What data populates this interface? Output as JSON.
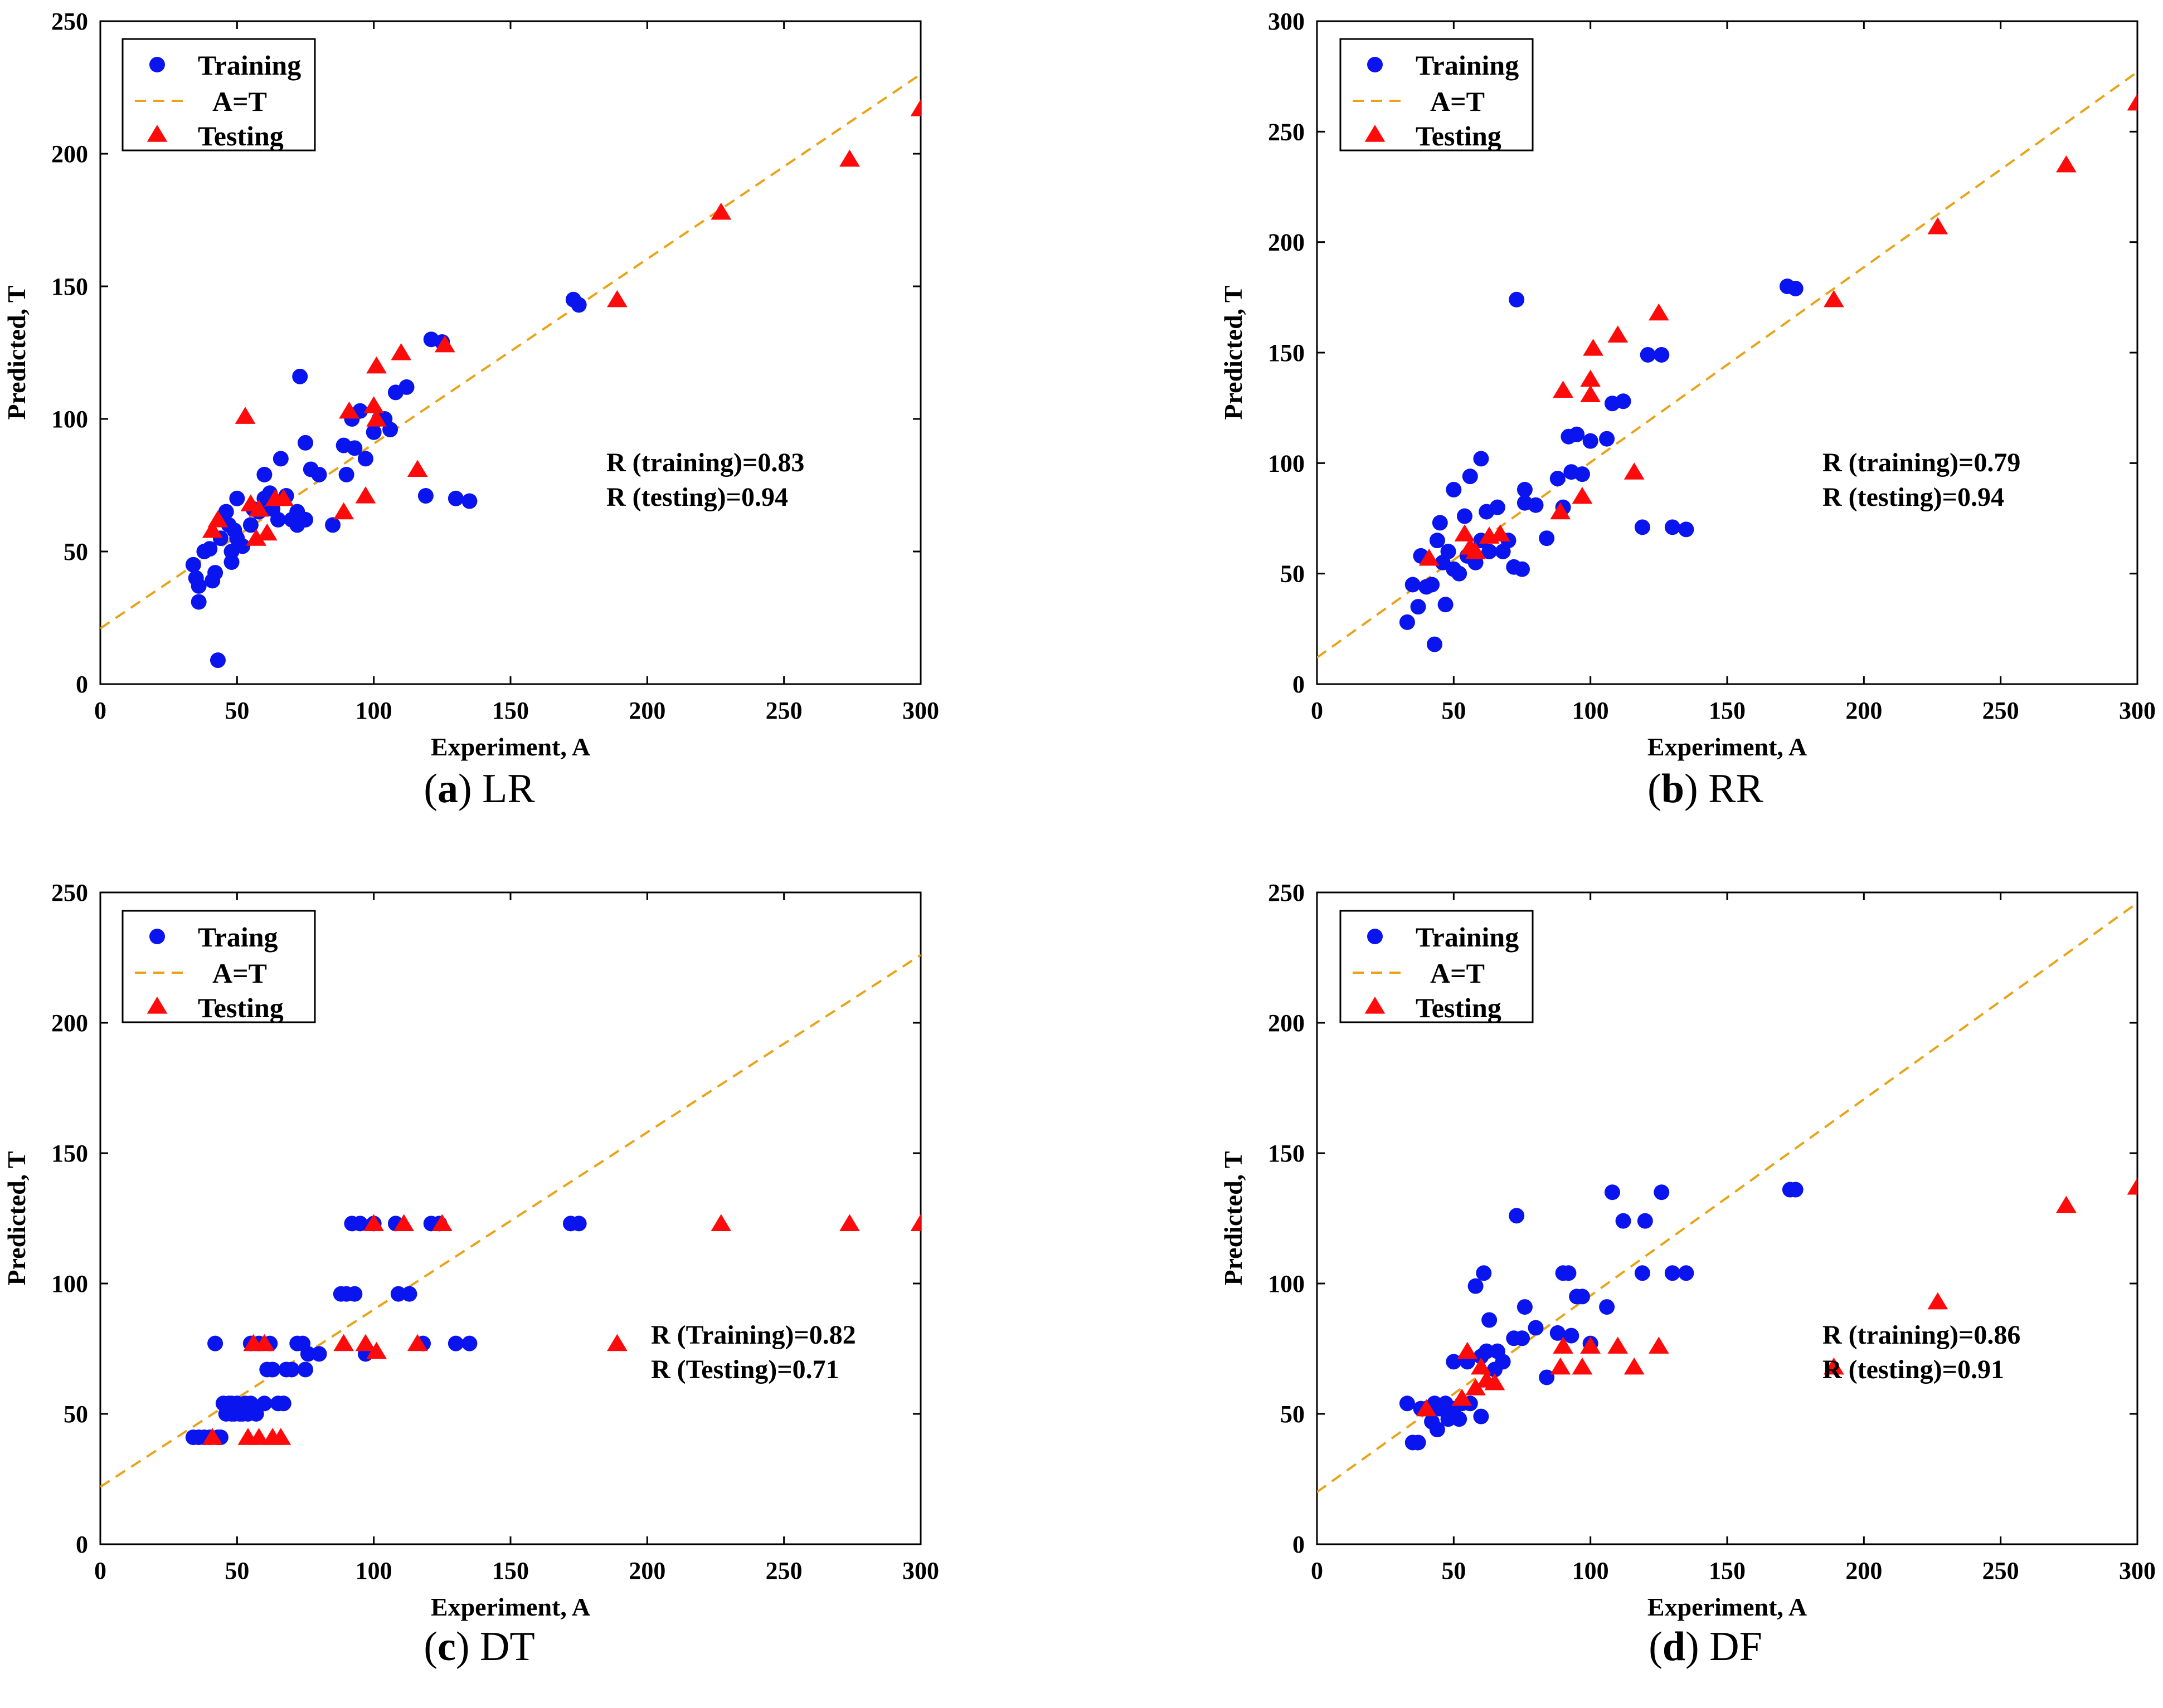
{
  "colors": {
    "training": "#0a14ee",
    "testing": "#ff0a0a",
    "fit": "#e8a317",
    "axis": "#000000"
  },
  "chart_data": [
    {
      "id": "a",
      "type": "scatter",
      "caption": {
        "letter": "(a)",
        "name": "LR"
      },
      "xlabel": "Experiment, A",
      "ylabel": "Predicted, T",
      "xlim": [
        0,
        300
      ],
      "ylim": [
        0,
        250
      ],
      "xticks": [
        "0",
        "50",
        "100",
        "150",
        "200",
        "250",
        "300"
      ],
      "yticks": [
        "0",
        "50",
        "100",
        "150",
        "200",
        "250"
      ],
      "legend": [
        "Training",
        "A=T",
        "Testing"
      ],
      "annotations": [
        "R (training)=0.83",
        "R (testing)=0.94"
      ],
      "fit_line": [
        [
          0,
          21
        ],
        [
          300,
          230
        ]
      ],
      "training": [
        [
          34,
          45
        ],
        [
          35,
          40
        ],
        [
          36,
          37
        ],
        [
          36,
          31
        ],
        [
          38,
          50
        ],
        [
          40,
          51
        ],
        [
          41,
          39
        ],
        [
          42,
          42
        ],
        [
          43,
          9
        ],
        [
          44,
          55
        ],
        [
          45,
          62
        ],
        [
          46,
          65
        ],
        [
          47,
          60
        ],
        [
          48,
          50
        ],
        [
          48,
          46
        ],
        [
          49,
          58
        ],
        [
          50,
          70
        ],
        [
          50,
          55
        ],
        [
          52,
          52
        ],
        [
          55,
          60
        ],
        [
          56,
          66
        ],
        [
          58,
          65
        ],
        [
          60,
          70
        ],
        [
          60,
          79
        ],
        [
          62,
          72
        ],
        [
          63,
          66
        ],
        [
          65,
          62
        ],
        [
          66,
          85
        ],
        [
          68,
          71
        ],
        [
          70,
          62
        ],
        [
          72,
          65
        ],
        [
          72,
          60
        ],
        [
          73,
          116
        ],
        [
          75,
          62
        ],
        [
          75,
          91
        ],
        [
          77,
          81
        ],
        [
          80,
          79
        ],
        [
          85,
          60
        ],
        [
          89,
          90
        ],
        [
          90,
          79
        ],
        [
          92,
          100
        ],
        [
          93,
          89
        ],
        [
          95,
          103
        ],
        [
          97,
          85
        ],
        [
          100,
          95
        ],
        [
          102,
          100
        ],
        [
          104,
          100
        ],
        [
          106,
          96
        ],
        [
          108,
          110
        ],
        [
          112,
          112
        ],
        [
          119,
          71
        ],
        [
          121,
          130
        ],
        [
          125,
          129
        ],
        [
          130,
          70
        ],
        [
          135,
          69
        ],
        [
          173,
          145
        ],
        [
          175,
          143
        ]
      ],
      "testing": [
        [
          41,
          58
        ],
        [
          43,
          62
        ],
        [
          53,
          101
        ],
        [
          55,
          68
        ],
        [
          57,
          55
        ],
        [
          58,
          66
        ],
        [
          61,
          57
        ],
        [
          64,
          70
        ],
        [
          67,
          70
        ],
        [
          89,
          65
        ],
        [
          91,
          103
        ],
        [
          97,
          71
        ],
        [
          100,
          105
        ],
        [
          101,
          100
        ],
        [
          101,
          120
        ],
        [
          110,
          125
        ],
        [
          116,
          81
        ],
        [
          126,
          128
        ],
        [
          189,
          145
        ],
        [
          227,
          178
        ],
        [
          274,
          198
        ],
        [
          300,
          217
        ]
      ]
    },
    {
      "id": "b",
      "type": "scatter",
      "caption": {
        "letter": "(b)",
        "name": "RR"
      },
      "xlabel": "Experiment, A",
      "ylabel": "Predicted, T",
      "xlim": [
        0,
        300
      ],
      "ylim": [
        0,
        300
      ],
      "xticks": [
        "0",
        "50",
        "100",
        "150",
        "200",
        "250",
        "300"
      ],
      "yticks": [
        "0",
        "50",
        "100",
        "150",
        "200",
        "250",
        "300"
      ],
      "legend": [
        "Training",
        "A=T",
        "Testing"
      ],
      "annotations": [
        "R (training)=0.79",
        "R (testing)=0.94"
      ],
      "fit_line": [
        [
          0,
          12
        ],
        [
          300,
          277
        ]
      ],
      "training": [
        [
          33,
          28
        ],
        [
          35,
          45
        ],
        [
          37,
          35
        ],
        [
          38,
          58
        ],
        [
          40,
          44
        ],
        [
          42,
          45
        ],
        [
          43,
          18
        ],
        [
          44,
          65
        ],
        [
          45,
          73
        ],
        [
          46,
          55
        ],
        [
          47,
          36
        ],
        [
          48,
          60
        ],
        [
          50,
          88
        ],
        [
          50,
          52
        ],
        [
          52,
          50
        ],
        [
          54,
          76
        ],
        [
          55,
          58
        ],
        [
          56,
          94
        ],
        [
          58,
          55
        ],
        [
          60,
          102
        ],
        [
          60,
          65
        ],
        [
          62,
          78
        ],
        [
          63,
          60
        ],
        [
          66,
          80
        ],
        [
          68,
          60
        ],
        [
          70,
          65
        ],
        [
          72,
          53
        ],
        [
          73,
          174
        ],
        [
          75,
          52
        ],
        [
          76,
          88
        ],
        [
          76,
          82
        ],
        [
          80,
          81
        ],
        [
          84,
          66
        ],
        [
          88,
          93
        ],
        [
          90,
          80
        ],
        [
          92,
          112
        ],
        [
          93,
          96
        ],
        [
          95,
          113
        ],
        [
          97,
          95
        ],
        [
          100,
          110
        ],
        [
          106,
          111
        ],
        [
          108,
          127
        ],
        [
          112,
          128
        ],
        [
          119,
          71
        ],
        [
          121,
          149
        ],
        [
          126,
          149
        ],
        [
          130,
          71
        ],
        [
          135,
          70
        ],
        [
          172,
          180
        ],
        [
          175,
          179
        ]
      ],
      "testing": [
        [
          41,
          57
        ],
        [
          54,
          68
        ],
        [
          56,
          62
        ],
        [
          58,
          60
        ],
        [
          63,
          67
        ],
        [
          67,
          68
        ],
        [
          89,
          78
        ],
        [
          90,
          133
        ],
        [
          97,
          85
        ],
        [
          100,
          138
        ],
        [
          100,
          131
        ],
        [
          101,
          152
        ],
        [
          110,
          158
        ],
        [
          116,
          96
        ],
        [
          125,
          168
        ],
        [
          189,
          174
        ],
        [
          227,
          207
        ],
        [
          274,
          235
        ],
        [
          300,
          263
        ]
      ]
    },
    {
      "id": "c",
      "type": "scatter",
      "caption": {
        "letter": "(c)",
        "name": "DT"
      },
      "xlabel": "Experiment, A",
      "ylabel": "Predicted, T",
      "xlim": [
        0,
        300
      ],
      "ylim": [
        0,
        250
      ],
      "xticks": [
        "0",
        "50",
        "100",
        "150",
        "200",
        "250",
        "300"
      ],
      "yticks": [
        "0",
        "50",
        "100",
        "150",
        "200",
        "250"
      ],
      "legend": [
        "Traing",
        "A=T",
        "Testing"
      ],
      "annotations": [
        "R (Training)=0.82",
        "R (Testing)=0.71"
      ],
      "fit_line": [
        [
          0,
          22
        ],
        [
          300,
          226
        ]
      ],
      "training": [
        [
          34,
          41
        ],
        [
          36,
          41
        ],
        [
          38,
          41
        ],
        [
          40,
          41
        ],
        [
          42,
          77
        ],
        [
          43,
          41
        ],
        [
          44,
          41
        ],
        [
          45,
          54
        ],
        [
          46,
          50
        ],
        [
          47,
          54
        ],
        [
          48,
          50
        ],
        [
          48,
          54
        ],
        [
          49,
          50
        ],
        [
          50,
          54
        ],
        [
          51,
          50
        ],
        [
          52,
          50
        ],
        [
          53,
          54
        ],
        [
          54,
          50
        ],
        [
          55,
          77
        ],
        [
          55,
          54
        ],
        [
          57,
          50
        ],
        [
          58,
          77
        ],
        [
          60,
          54
        ],
        [
          61,
          67
        ],
        [
          62,
          77
        ],
        [
          63,
          67
        ],
        [
          65,
          54
        ],
        [
          67,
          54
        ],
        [
          68,
          67
        ],
        [
          70,
          67
        ],
        [
          72,
          77
        ],
        [
          74,
          77
        ],
        [
          75,
          67
        ],
        [
          76,
          73
        ],
        [
          80,
          73
        ],
        [
          88,
          96
        ],
        [
          90,
          96
        ],
        [
          92,
          123
        ],
        [
          93,
          96
        ],
        [
          95,
          123
        ],
        [
          97,
          73
        ],
        [
          100,
          123
        ],
        [
          108,
          123
        ],
        [
          109,
          96
        ],
        [
          113,
          96
        ],
        [
          118,
          77
        ],
        [
          121,
          123
        ],
        [
          124,
          123
        ],
        [
          130,
          77
        ],
        [
          135,
          77
        ],
        [
          172,
          123
        ],
        [
          175,
          123
        ]
      ],
      "testing": [
        [
          41,
          41
        ],
        [
          54,
          41
        ],
        [
          56,
          77
        ],
        [
          58,
          41
        ],
        [
          60,
          77
        ],
        [
          63,
          41
        ],
        [
          66,
          41
        ],
        [
          89,
          77
        ],
        [
          97,
          77
        ],
        [
          100,
          123
        ],
        [
          101,
          74
        ],
        [
          111,
          123
        ],
        [
          116,
          77
        ],
        [
          125,
          123
        ],
        [
          189,
          77
        ],
        [
          227,
          123
        ],
        [
          274,
          123
        ],
        [
          300,
          123
        ]
      ]
    },
    {
      "id": "d",
      "type": "scatter",
      "caption": {
        "letter": "(d)",
        "name": "DF"
      },
      "xlabel": "Experiment, A",
      "ylabel": "Predicted, T",
      "xlim": [
        0,
        300
      ],
      "ylim": [
        0,
        250
      ],
      "xticks": [
        "0",
        "50",
        "100",
        "150",
        "200",
        "250",
        "300"
      ],
      "yticks": [
        "0",
        "50",
        "100",
        "150",
        "200",
        "250"
      ],
      "legend": [
        "Training",
        "A=T",
        "Testing"
      ],
      "annotations": [
        "R (training)=0.86",
        "R (testing)=0.91"
      ],
      "fit_line": [
        [
          0,
          20
        ],
        [
          300,
          246
        ]
      ],
      "training": [
        [
          33,
          54
        ],
        [
          35,
          39
        ],
        [
          37,
          39
        ],
        [
          38,
          52
        ],
        [
          40,
          52
        ],
        [
          42,
          47
        ],
        [
          43,
          54
        ],
        [
          44,
          44
        ],
        [
          45,
          52
        ],
        [
          47,
          54
        ],
        [
          48,
          48
        ],
        [
          50,
          52
        ],
        [
          50,
          70
        ],
        [
          52,
          48
        ],
        [
          53,
          54
        ],
        [
          55,
          70
        ],
        [
          56,
          54
        ],
        [
          58,
          99
        ],
        [
          60,
          72
        ],
        [
          60,
          49
        ],
        [
          61,
          104
        ],
        [
          62,
          74
        ],
        [
          63,
          86
        ],
        [
          65,
          67
        ],
        [
          66,
          74
        ],
        [
          68,
          70
        ],
        [
          72,
          79
        ],
        [
          73,
          126
        ],
        [
          75,
          79
        ],
        [
          76,
          91
        ],
        [
          80,
          83
        ],
        [
          84,
          64
        ],
        [
          88,
          81
        ],
        [
          90,
          104
        ],
        [
          92,
          104
        ],
        [
          93,
          80
        ],
        [
          95,
          95
        ],
        [
          97,
          95
        ],
        [
          100,
          77
        ],
        [
          106,
          91
        ],
        [
          108,
          135
        ],
        [
          112,
          124
        ],
        [
          119,
          104
        ],
        [
          120,
          124
        ],
        [
          126,
          135
        ],
        [
          130,
          104
        ],
        [
          135,
          104
        ],
        [
          173,
          136
        ],
        [
          175,
          136
        ]
      ],
      "testing": [
        [
          40,
          52
        ],
        [
          53,
          56
        ],
        [
          55,
          74
        ],
        [
          58,
          60
        ],
        [
          60,
          68
        ],
        [
          62,
          63
        ],
        [
          65,
          62
        ],
        [
          89,
          68
        ],
        [
          90,
          76
        ],
        [
          97,
          68
        ],
        [
          100,
          76
        ],
        [
          110,
          76
        ],
        [
          116,
          68
        ],
        [
          125,
          76
        ],
        [
          189,
          68
        ],
        [
          227,
          93
        ],
        [
          274,
          130
        ],
        [
          300,
          137
        ]
      ]
    }
  ]
}
